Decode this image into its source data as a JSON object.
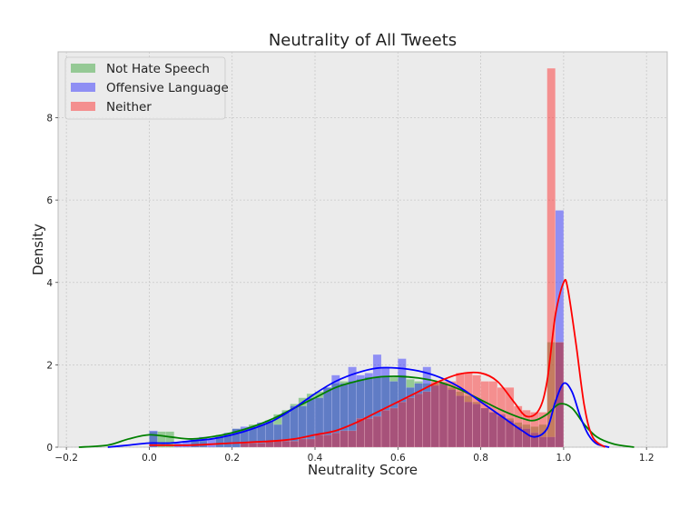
{
  "chart_data": {
    "type": "bar",
    "title": "Neutrality of All Tweets",
    "xlabel": "Neutrality Score",
    "ylabel": "Density",
    "xlim": [
      -0.22,
      1.25
    ],
    "ylim": [
      0,
      9.6
    ],
    "xticks": [
      -0.2,
      0.0,
      0.2,
      0.4,
      0.6,
      0.8,
      1.0,
      1.2
    ],
    "xtick_labels": [
      "−0.2",
      "0.0",
      "0.2",
      "0.4",
      "0.6",
      "0.8",
      "1.0",
      "1.2"
    ],
    "yticks": [
      0,
      2,
      4,
      6,
      8
    ],
    "ytick_labels": [
      "0",
      "2",
      "4",
      "6",
      "8"
    ],
    "grid": true,
    "legend_position": "top-left",
    "bin_width": 0.02,
    "series": [
      {
        "name": "Not Hate Speech",
        "color": "#2ca02c",
        "kde_color": "#008000",
        "bar_opacity": 0.45,
        "bins_x": [
          0.0,
          0.02,
          0.04,
          0.1,
          0.12,
          0.16,
          0.18,
          0.2,
          0.22,
          0.24,
          0.26,
          0.28,
          0.3,
          0.32,
          0.34,
          0.36,
          0.38,
          0.4,
          0.42,
          0.44,
          0.46,
          0.48,
          0.5,
          0.52,
          0.54,
          0.56,
          0.58,
          0.6,
          0.62,
          0.64,
          0.66,
          0.68,
          0.7,
          0.72,
          0.74,
          0.76,
          0.78,
          0.8,
          0.82,
          0.84,
          0.86,
          0.88,
          0.9,
          0.92,
          0.94,
          0.96,
          0.98
        ],
        "bins_y": [
          0.38,
          0.38,
          0.38,
          0.15,
          0.15,
          0.3,
          0.3,
          0.45,
          0.45,
          0.55,
          0.55,
          0.65,
          0.8,
          0.9,
          1.05,
          1.2,
          1.3,
          1.35,
          1.45,
          1.55,
          1.6,
          1.6,
          1.65,
          1.7,
          1.7,
          1.72,
          1.7,
          1.75,
          1.65,
          1.6,
          1.55,
          1.55,
          1.55,
          1.45,
          1.35,
          1.25,
          1.1,
          0.95,
          0.85,
          0.75,
          0.7,
          0.6,
          0.55,
          0.5,
          0.55,
          2.55,
          2.55
        ],
        "kde_x": [
          -0.17,
          -0.1,
          -0.05,
          0.0,
          0.05,
          0.1,
          0.15,
          0.2,
          0.25,
          0.3,
          0.35,
          0.4,
          0.45,
          0.5,
          0.55,
          0.6,
          0.65,
          0.7,
          0.75,
          0.8,
          0.85,
          0.9,
          0.93,
          0.96,
          0.99,
          1.02,
          1.05,
          1.08,
          1.12,
          1.17
        ],
        "kde_y": [
          0.0,
          0.05,
          0.2,
          0.3,
          0.25,
          0.2,
          0.25,
          0.35,
          0.5,
          0.7,
          0.95,
          1.2,
          1.45,
          1.6,
          1.7,
          1.72,
          1.68,
          1.58,
          1.4,
          1.15,
          0.9,
          0.7,
          0.65,
          0.8,
          1.05,
          0.95,
          0.55,
          0.25,
          0.08,
          0.0
        ]
      },
      {
        "name": "Offensive Language",
        "color": "#1f1fff",
        "kde_color": "#0000ff",
        "bar_opacity": 0.45,
        "bins_x": [
          0.0,
          0.06,
          0.08,
          0.1,
          0.12,
          0.14,
          0.16,
          0.18,
          0.2,
          0.22,
          0.24,
          0.26,
          0.28,
          0.3,
          0.32,
          0.34,
          0.36,
          0.38,
          0.4,
          0.42,
          0.44,
          0.46,
          0.48,
          0.5,
          0.52,
          0.54,
          0.56,
          0.58,
          0.6,
          0.62,
          0.64,
          0.66,
          0.68,
          0.7,
          0.72,
          0.74,
          0.76,
          0.78,
          0.8,
          0.82,
          0.84,
          0.86,
          0.88,
          0.9,
          0.92,
          0.94,
          0.96,
          0.98
        ],
        "bins_y": [
          0.4,
          0.1,
          0.15,
          0.2,
          0.25,
          0.2,
          0.25,
          0.35,
          0.45,
          0.5,
          0.5,
          0.6,
          0.65,
          0.55,
          0.85,
          1.0,
          1.0,
          1.2,
          1.2,
          1.45,
          1.75,
          1.55,
          1.95,
          1.75,
          1.8,
          2.25,
          1.95,
          1.6,
          2.15,
          1.45,
          1.55,
          1.95,
          1.5,
          1.55,
          1.4,
          1.25,
          1.1,
          1.05,
          0.95,
          0.85,
          0.8,
          0.65,
          0.5,
          0.45,
          0.35,
          0.25,
          0.25,
          5.75
        ],
        "kde_x": [
          -0.1,
          -0.05,
          0.0,
          0.05,
          0.1,
          0.15,
          0.2,
          0.25,
          0.3,
          0.35,
          0.4,
          0.45,
          0.5,
          0.55,
          0.6,
          0.65,
          0.7,
          0.75,
          0.8,
          0.85,
          0.9,
          0.93,
          0.96,
          0.98,
          1.0,
          1.02,
          1.04,
          1.06,
          1.08,
          1.11
        ],
        "kde_y": [
          0.0,
          0.05,
          0.1,
          0.1,
          0.15,
          0.2,
          0.3,
          0.45,
          0.65,
          0.95,
          1.3,
          1.6,
          1.8,
          1.92,
          1.92,
          1.85,
          1.7,
          1.45,
          1.1,
          0.75,
          0.4,
          0.25,
          0.45,
          1.1,
          1.55,
          1.35,
          0.75,
          0.3,
          0.08,
          0.0
        ]
      },
      {
        "name": "Neither",
        "color": "#ff2020",
        "kde_color": "#ff0000",
        "bar_opacity": 0.45,
        "bins_x": [
          0.22,
          0.24,
          0.26,
          0.28,
          0.3,
          0.32,
          0.34,
          0.36,
          0.38,
          0.4,
          0.42,
          0.44,
          0.46,
          0.48,
          0.5,
          0.52,
          0.54,
          0.56,
          0.58,
          0.6,
          0.62,
          0.64,
          0.66,
          0.68,
          0.7,
          0.72,
          0.74,
          0.76,
          0.78,
          0.8,
          0.82,
          0.84,
          0.86,
          0.88,
          0.9,
          0.92,
          0.94,
          0.96,
          0.98
        ],
        "bins_y": [
          0.1,
          0.1,
          0.1,
          0.15,
          0.15,
          0.15,
          0.15,
          0.2,
          0.2,
          0.3,
          0.3,
          0.35,
          0.4,
          0.4,
          0.7,
          0.7,
          0.75,
          0.9,
          0.95,
          1.1,
          1.2,
          1.3,
          1.35,
          1.6,
          1.6,
          1.6,
          1.8,
          1.8,
          1.75,
          1.6,
          1.6,
          1.45,
          1.45,
          1.0,
          0.9,
          0.85,
          0.85,
          9.2,
          2.55
        ],
        "kde_x": [
          0.0,
          0.1,
          0.2,
          0.3,
          0.35,
          0.4,
          0.45,
          0.5,
          0.55,
          0.6,
          0.65,
          0.7,
          0.75,
          0.8,
          0.84,
          0.88,
          0.91,
          0.94,
          0.96,
          0.98,
          1.0,
          1.01,
          1.03,
          1.05,
          1.07,
          1.1
        ],
        "kde_y": [
          0.05,
          0.05,
          0.1,
          0.15,
          0.2,
          0.3,
          0.4,
          0.6,
          0.85,
          1.1,
          1.35,
          1.6,
          1.78,
          1.8,
          1.6,
          1.1,
          0.75,
          0.9,
          1.6,
          3.2,
          4.0,
          3.85,
          2.5,
          1.0,
          0.25,
          0.0
        ]
      }
    ]
  }
}
